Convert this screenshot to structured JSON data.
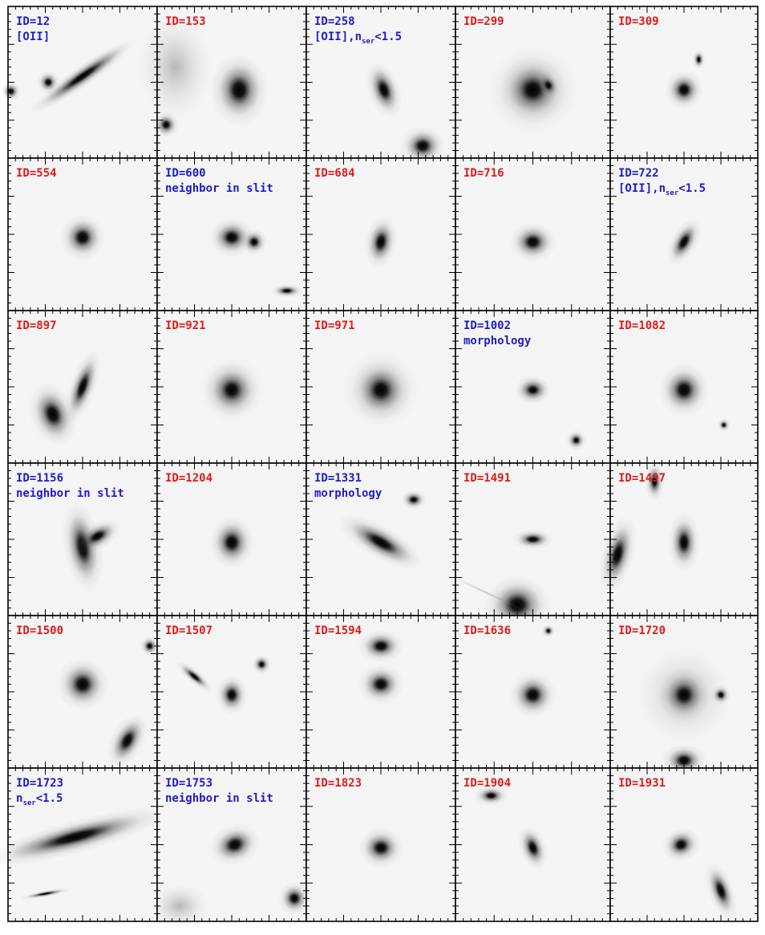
{
  "colors": {
    "red": "#e01a1a",
    "blue": "#1d1dc8",
    "frame": "#000000",
    "sky": "#f7f7f7"
  },
  "panels": [
    {
      "id": "ID=12",
      "color": "blue",
      "note": "[OII]"
    },
    {
      "id": "ID=153",
      "color": "red"
    },
    {
      "id": "ID=258",
      "color": "blue",
      "note": "[OII],n",
      "sub": "ser",
      "tail": "<1.5"
    },
    {
      "id": "ID=299",
      "color": "red"
    },
    {
      "id": "ID=309",
      "color": "red"
    },
    {
      "id": "ID=554",
      "color": "red"
    },
    {
      "id": "ID=600",
      "color": "blue",
      "note": "neighbor in slit"
    },
    {
      "id": "ID=684",
      "color": "red"
    },
    {
      "id": "ID=716",
      "color": "red"
    },
    {
      "id": "ID=722",
      "color": "blue",
      "note": "[OII],n",
      "sub": "ser",
      "tail": "<1.5"
    },
    {
      "id": "ID=897",
      "color": "red"
    },
    {
      "id": "ID=921",
      "color": "red"
    },
    {
      "id": "ID=971",
      "color": "red"
    },
    {
      "id": "ID=1002",
      "color": "blue",
      "note": "morphology"
    },
    {
      "id": "ID=1082",
      "color": "red"
    },
    {
      "id": "ID=1156",
      "color": "blue",
      "note": "neighbor in slit"
    },
    {
      "id": "ID=1204",
      "color": "red"
    },
    {
      "id": "ID=1331",
      "color": "blue",
      "note": "morphology"
    },
    {
      "id": "ID=1491",
      "color": "red"
    },
    {
      "id": "ID=1497",
      "color": "red"
    },
    {
      "id": "ID=1500",
      "color": "red"
    },
    {
      "id": "ID=1507",
      "color": "red"
    },
    {
      "id": "ID=1594",
      "color": "red"
    },
    {
      "id": "ID=1636",
      "color": "red"
    },
    {
      "id": "ID=1720",
      "color": "red"
    },
    {
      "id": "ID=1723",
      "color": "blue",
      "note": "n",
      "sub": "ser",
      "tail": "<1.5"
    },
    {
      "id": "ID=1753",
      "color": "blue",
      "note": "neighbor in slit"
    },
    {
      "id": "ID=1823",
      "color": "red"
    },
    {
      "id": "ID=1904",
      "color": "red"
    },
    {
      "id": "ID=1931",
      "color": "red"
    }
  ]
}
